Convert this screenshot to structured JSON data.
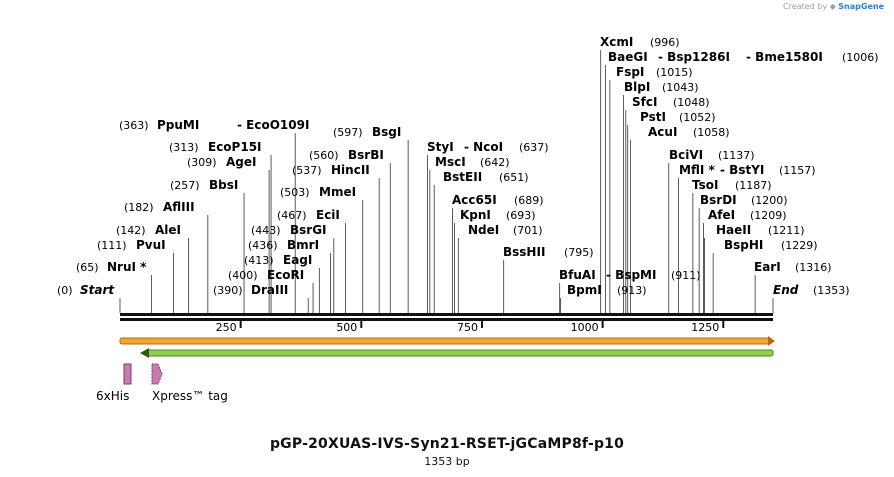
{
  "credit": {
    "prefix": "Created by",
    "brand": "SnapGene"
  },
  "map": {
    "name": "pGP-20XUAS-IVS-Syn21-RSET-jGCaMP8f-p10",
    "length_label": "1353 bp",
    "length_bp": 1353,
    "start_label": "Start",
    "end_label": "End",
    "start_pos": "(0)",
    "end_pos": "(1353)",
    "ticks": [
      {
        "bp": 250,
        "label": "250"
      },
      {
        "bp": 500,
        "label": "500"
      },
      {
        "bp": 750,
        "label": "750"
      },
      {
        "bp": 1000,
        "label": "1000"
      },
      {
        "bp": 1250,
        "label": "1250"
      }
    ],
    "sites": [
      {
        "pos": "(65)",
        "name": "NruI *",
        "bp": 65
      },
      {
        "pos": "(111)",
        "name": "PvuI",
        "bp": 111
      },
      {
        "pos": "(142)",
        "name": "AleI",
        "bp": 142
      },
      {
        "pos": "(182)",
        "name": "AflIII",
        "bp": 182
      },
      {
        "pos": "(257)",
        "name": "BbsI",
        "bp": 257
      },
      {
        "pos": "(309)",
        "name": "AgeI",
        "bp": 309
      },
      {
        "pos": "(313)",
        "name": "EcoP15I",
        "bp": 313
      },
      {
        "pos": "(363)",
        "name": "PpuMI",
        "name2": "EcoO109I",
        "bp": 363
      },
      {
        "pos": "(390)",
        "name": "DraIII",
        "bp": 390
      },
      {
        "pos": "(400)",
        "name": "EcoRI",
        "bp": 400
      },
      {
        "pos": "(413)",
        "name": "EagI",
        "bp": 413
      },
      {
        "pos": "(436)",
        "name": "BmrI",
        "bp": 436
      },
      {
        "pos": "(443)",
        "name": "BsrGI",
        "bp": 443
      },
      {
        "pos": "(467)",
        "name": "EciI",
        "bp": 467
      },
      {
        "pos": "(503)",
        "name": "MmeI",
        "bp": 503
      },
      {
        "pos": "(537)",
        "name": "HincII",
        "bp": 537
      },
      {
        "pos": "(560)",
        "name": "BsrBI",
        "bp": 560
      },
      {
        "pos": "(597)",
        "name": "BsgI",
        "bp": 597
      },
      {
        "name": "StyI",
        "name2": "NcoI",
        "pos": "(637)",
        "bp": 637
      },
      {
        "name": "MscI",
        "pos": "(642)",
        "bp": 642
      },
      {
        "name": "BstEII",
        "pos": "(651)",
        "bp": 651
      },
      {
        "name": "Acc65I",
        "pos": "(689)",
        "bp": 689
      },
      {
        "name": "KpnI",
        "pos": "(693)",
        "bp": 693
      },
      {
        "name": "NdeI",
        "pos": "(701)",
        "bp": 701
      },
      {
        "name": "BssHII",
        "pos": "(795)",
        "bp": 795
      },
      {
        "name": "BfuAI",
        "name2": "BspMI",
        "pos": "(911)",
        "bp": 911
      },
      {
        "name": "BpmI",
        "pos": "(913)",
        "bp": 913
      },
      {
        "name": "XcmI",
        "pos": "(996)",
        "bp": 996
      },
      {
        "name": "BaeGI",
        "name2": "Bsp1286I",
        "name3": "Bme1580I",
        "pos": "(1006)",
        "bp": 1006
      },
      {
        "name": "FspI",
        "pos": "(1015)",
        "bp": 1015
      },
      {
        "name": "BlpI",
        "pos": "(1043)",
        "bp": 1043
      },
      {
        "name": "SfcI",
        "pos": "(1048)",
        "bp": 1048
      },
      {
        "name": "PstI",
        "pos": "(1052)",
        "bp": 1052
      },
      {
        "name": "AcuI",
        "pos": "(1058)",
        "bp": 1058
      },
      {
        "name": "BciVI",
        "pos": "(1137)",
        "bp": 1137
      },
      {
        "name": "MflI *",
        "name2": "BstYI",
        "pos": "(1157)",
        "bp": 1157
      },
      {
        "name": "TsoI",
        "pos": "(1187)",
        "bp": 1187
      },
      {
        "name": "BsrDI",
        "pos": "(1200)",
        "bp": 1200
      },
      {
        "name": "AfeI",
        "pos": "(1209)",
        "bp": 1209
      },
      {
        "name": "HaeII",
        "pos": "(1211)",
        "bp": 1211
      },
      {
        "name": "BspHI",
        "pos": "(1229)",
        "bp": 1229
      },
      {
        "name": "EarI",
        "pos": "(1316)",
        "bp": 1316
      }
    ],
    "features": [
      {
        "name": "6xHis"
      },
      {
        "name": "Xpress™ tag"
      }
    ],
    "colors": {
      "orange": "#f0a830",
      "green": "#8fd14f",
      "feature": "#c97bb0"
    }
  }
}
